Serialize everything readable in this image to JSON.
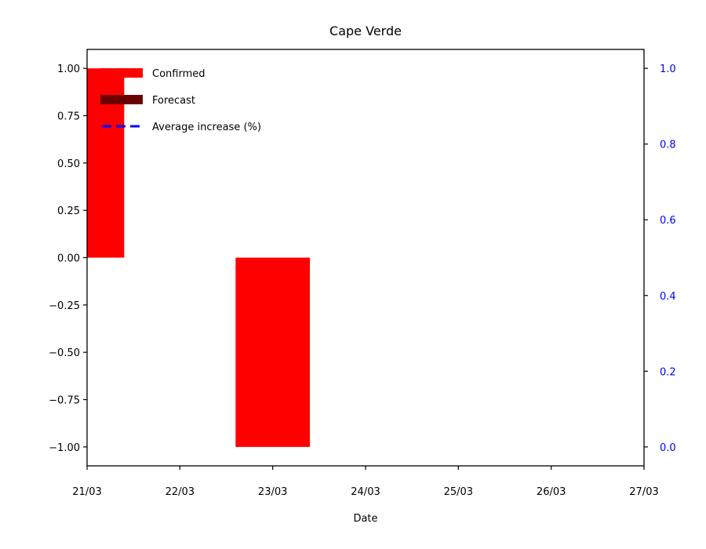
{
  "chart_data": {
    "type": "bar",
    "title": "Cape Verde",
    "xlabel": "Date",
    "ylabel": "",
    "x_ticks": [
      "21/03",
      "22/03",
      "23/03",
      "24/03",
      "25/03",
      "26/03",
      "27/03"
    ],
    "x_range": [
      "21/03",
      "27/03"
    ],
    "y_left": {
      "ticks": [
        "1.00",
        "0.75",
        "0.50",
        "0.25",
        "0.00",
        "−0.25",
        "−0.50",
        "−0.75",
        "−1.00"
      ],
      "tick_values": [
        1.0,
        0.75,
        0.5,
        0.25,
        0.0,
        -0.25,
        -0.5,
        -0.75,
        -1.0
      ],
      "ylim": [
        -1.1,
        1.1
      ]
    },
    "y_right": {
      "ticks": [
        "1.0",
        "0.8",
        "0.6",
        "0.4",
        "0.2",
        "0.0"
      ],
      "tick_values": [
        1.0,
        0.8,
        0.6,
        0.4,
        0.2,
        0.0
      ],
      "ylim": [
        -0.05,
        1.05
      ],
      "color": "#0000ff"
    },
    "series": [
      {
        "name": "Confirmed",
        "type": "bar",
        "color": "#ff0000",
        "bars": [
          {
            "x": "21/03",
            "value": 1.0
          },
          {
            "x": "23/03",
            "value": -1.0
          }
        ]
      },
      {
        "name": "Forecast",
        "type": "bar",
        "color": "#6b0000",
        "bars": []
      },
      {
        "name": "Average increase (%)",
        "type": "line",
        "style": "dashed",
        "color": "#0000ff",
        "values": []
      }
    ],
    "legend": {
      "position": "top-left",
      "entries": [
        "Confirmed",
        "Forecast",
        "Average increase (%)"
      ]
    },
    "grid": false
  }
}
